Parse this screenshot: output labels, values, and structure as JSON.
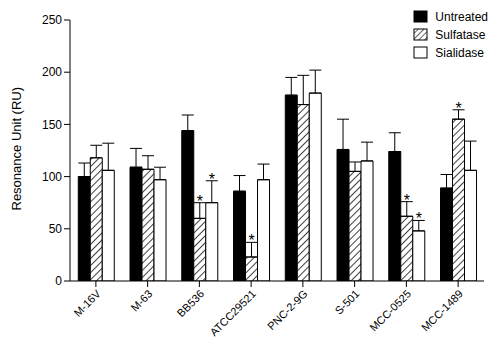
{
  "chart_data": {
    "type": "bar",
    "y_label": "Resonance Unit (RU)",
    "categories": [
      "M-16V",
      "M-63",
      "BB536",
      "ATCC29521",
      "PNC-2-9G",
      "S-501",
      "MCC-0525",
      "MCC-1489"
    ],
    "ylim": [
      0,
      250
    ],
    "yticks": [
      0,
      50,
      100,
      150,
      200,
      250
    ],
    "grid": false,
    "legend": "top-right",
    "series": [
      {
        "name": "Untreated",
        "color": "#000000",
        "marker": "solid",
        "values": [
          100,
          109,
          144,
          86,
          178,
          126,
          124,
          89
        ],
        "errors": [
          13,
          18,
          15,
          15,
          17,
          29,
          18,
          13
        ],
        "annotations": [
          null,
          null,
          null,
          null,
          null,
          null,
          null,
          null
        ]
      },
      {
        "name": "Sulfatase",
        "color": "#000000",
        "marker": "hatch",
        "values": [
          118,
          107,
          60,
          23,
          169,
          105,
          62,
          155
        ],
        "errors": [
          12,
          13,
          15,
          14,
          28,
          9,
          14,
          9
        ],
        "annotations": [
          null,
          null,
          "*",
          "*",
          null,
          null,
          "*",
          "*"
        ]
      },
      {
        "name": "Sialidase",
        "color": "#ffffff",
        "marker": "solid",
        "values": [
          106,
          97,
          75,
          97,
          180,
          115,
          48,
          106
        ],
        "errors": [
          26,
          12,
          21,
          15,
          22,
          18,
          10,
          28
        ],
        "annotations": [
          null,
          null,
          "*",
          null,
          null,
          null,
          "*",
          null
        ]
      }
    ]
  }
}
